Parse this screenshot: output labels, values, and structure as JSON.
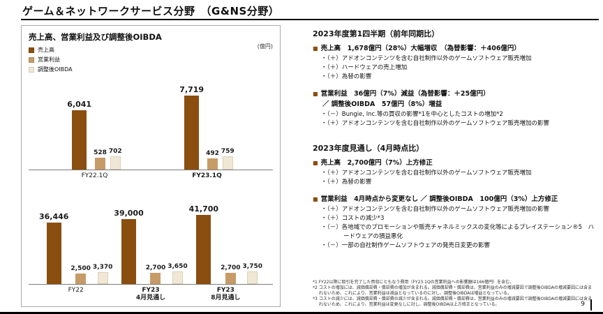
{
  "slide": {
    "title": "ゲーム＆ネットワークサービス分野　（G&NS分野）",
    "page_number": "9"
  },
  "colors": {
    "series": [
      "#8a4e10",
      "#c69b68",
      "#f1e7d5"
    ],
    "bullet": "#8a4e10",
    "rule": "#000000"
  },
  "chart_panel": {
    "title": "売上高、営業利益及び調整後OIBDA",
    "unit_label": "(億円)",
    "legend": [
      {
        "label": "売上高",
        "color": "#8a4e10"
      },
      {
        "label": "営業利益",
        "color": "#c69b68"
      },
      {
        "label": "調整後OIBDA",
        "color": "#f1e7d5"
      }
    ]
  },
  "chart_data": [
    {
      "type": "bar",
      "title": "売上高、営業利益及び調整後OIBDA",
      "unit": "億円",
      "grid": false,
      "legend_position": "top-left",
      "categories": [
        {
          "lines": [
            "FY22.1Q"
          ],
          "bold": false
        },
        {
          "lines": [
            "FY23.1Q"
          ],
          "bold": true
        }
      ],
      "series": [
        {
          "name": "売上高",
          "values": [
            6041,
            7719
          ]
        },
        {
          "name": "営業利益",
          "values": [
            528,
            492
          ]
        },
        {
          "name": "調整後OIBDA",
          "values": [
            702,
            759
          ]
        }
      ],
      "ylim": [
        0,
        8200
      ]
    },
    {
      "type": "bar",
      "title": "売上高、営業利益及び調整後OIBDA",
      "unit": "億円",
      "grid": false,
      "categories": [
        {
          "lines": [
            "FY22"
          ],
          "bold": false
        },
        {
          "lines": [
            "FY23",
            "4月見通し"
          ],
          "bold": true
        },
        {
          "lines": [
            "FY23",
            "8月見通し"
          ],
          "bold": true
        }
      ],
      "series": [
        {
          "name": "売上高",
          "values": [
            36446,
            39000,
            41700
          ]
        },
        {
          "name": "営業利益",
          "values": [
            2500,
            2700,
            2700
          ]
        },
        {
          "name": "調整後OIBDA",
          "values": [
            3370,
            3650,
            3750
          ]
        }
      ],
      "ylim": [
        0,
        44000
      ]
    }
  ],
  "right": {
    "sections": [
      {
        "heading": "2023年度第1四半期（前年同期比）",
        "blocks": [
          {
            "main": [
              "売上高　1,678億円（28%）大幅増収　（為替影響：＋406億円）"
            ],
            "subs": [
              "・（＋）アドオンコンテンツを含む自社制作以外のゲームソフトウェア販売増加",
              "・（＋）ハードウェアの売上増加",
              "・（＋）為替の影響"
            ]
          },
          {
            "main": [
              "営業利益　36億円（7%）減益（為替影響：＋25億円）",
              "／ 調整後OIBDA　57億円（8%）増益"
            ],
            "subs": [
              "・（－）Bungie, Inc.等の買収の影響*1を中心としたコストの増加*2",
              "・（＋）アドオンコンテンツを含む自社制作以外のゲームソフトウェア販売増加の影響"
            ]
          }
        ]
      },
      {
        "heading": "2023年度見通し（4月時点比）",
        "blocks": [
          {
            "main": [
              "売上高　2,700億円（7%）上方修正"
            ],
            "subs": [
              "・（＋）アドオンコンテンツを含む自社制作以外のゲームソフトウェア販売増加",
              "・（＋）為替の影響"
            ]
          },
          {
            "main": [
              "営業利益　4月時点から変更なし ／ 調整後OIBDA　100億円（3%）上方修正"
            ],
            "subs": [
              "・（＋）アドオンコンテンツを含む自社制作以外のゲームソフトウェア販売増加の影響",
              "・（＋）コストの減少*3",
              "・（－）各地域でのプロモーションや販売チャネルミックスの変化等によるプレイステーション®5　ハードウェアの損益悪化",
              "・（－）一部の自社制作ゲームソフトウェアの発売日変更の影響"
            ]
          }
        ]
      }
    ],
    "footnotes": [
      "*1 FY22以降に取引を完了した買収にともなう費用（FY23.1Qの営業利益への影響額は166億円）を含む。",
      "*2 コストの増加には、減価償却費・償却費の増加が含まれる。減価償却費・償却費は、営業利益のみの増減要因で調整後OIBDAの増減要因には含まれないため、これにより、営業利益は減益となっているのに対し、調整後OIBDAは増益となっている。",
      "*3 コストの減少には、減価償却費・償却費の減少が含まれる。減価償却費・償却費は、営業利益のみの増減要因で調整後OIBDAの増減要因には含まれないため、これにより、営業利益は変更なしに対し、調整後OIBDAは上方修正となっている。"
    ]
  }
}
